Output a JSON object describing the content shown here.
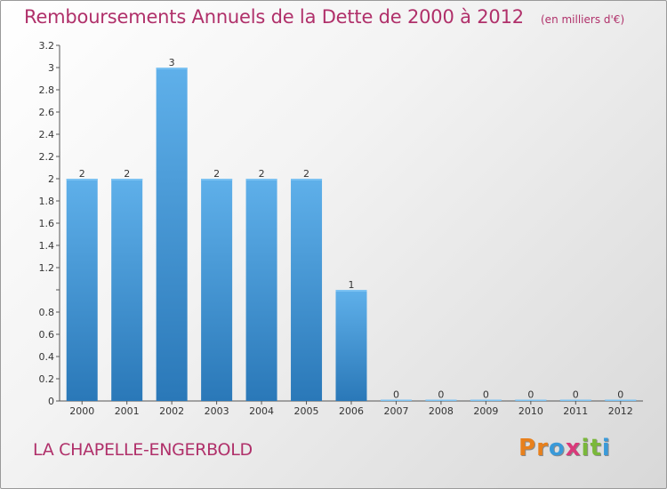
{
  "title": "Remboursements Annuels de la Dette de 2000 à 2012",
  "unit": "(en milliers d'€)",
  "commune": "LA CHAPELLE-ENGERBOLD",
  "logo": {
    "letters": [
      "P",
      "r",
      "o",
      "x",
      "i",
      "t",
      "i"
    ],
    "colors": [
      "#e8801c",
      "#e8801c",
      "#3a9ad9",
      "#d93a7a",
      "#7ab83a",
      "#7ab83a",
      "#3a9ad9"
    ]
  },
  "colors": {
    "bar_light": "#5fb0ea",
    "bar_dark": "#2a78b8",
    "title": "#b0306a"
  },
  "chart_data": {
    "type": "bar",
    "categories": [
      "2000",
      "2001",
      "2002",
      "2003",
      "2004",
      "2005",
      "2006",
      "2007",
      "2008",
      "2009",
      "2010",
      "2011",
      "2012"
    ],
    "values": [
      2,
      2,
      3,
      2,
      2,
      2,
      1,
      0,
      0,
      0,
      0,
      0,
      0
    ],
    "data_labels": [
      "2",
      "2",
      "3",
      "2",
      "2",
      "2",
      "1",
      "0",
      "0",
      "0",
      "0",
      "0",
      "0"
    ],
    "ylim": [
      0,
      3.2
    ],
    "yticks": [
      0,
      0.2,
      0.4,
      0.6,
      0.8,
      1,
      1.2,
      1.4,
      1.6,
      1.8,
      2,
      2.2,
      2.4,
      2.6,
      2.8,
      3,
      3.2
    ],
    "ytick_labels": [
      "0",
      "0.2",
      "0.4",
      "0.6",
      "0.8",
      "",
      "1.2",
      "1.4",
      "1.6",
      "1.8",
      "2",
      "2.2",
      "2.4",
      "2.6",
      "2.8",
      "3",
      "3.2"
    ],
    "grid": false
  }
}
